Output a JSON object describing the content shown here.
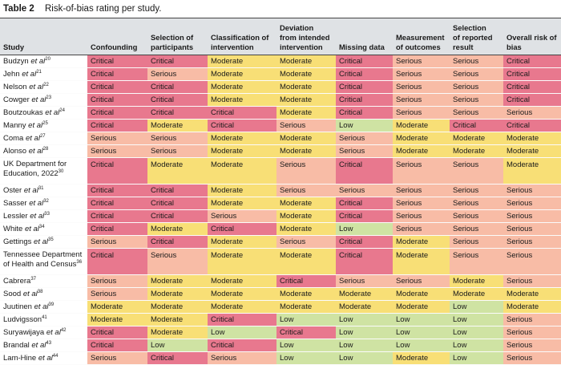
{
  "caption": {
    "number": "Table 2",
    "title": "Risk-of-bias rating per study."
  },
  "colors": {
    "Critical": "#e8788e",
    "Serious": "#f8bca6",
    "Moderate": "#f8df76",
    "Low": "#cfe3a3",
    "header_bg": "#dfe2e5"
  },
  "headers": [
    "Study",
    "Confounding",
    "Selection of\nparticipants",
    "Classification of\nintervention",
    "Deviation\nfrom intended\nintervention",
    "Missing data",
    "Measurement\nof outcomes",
    "Selection\nof reported\nresult",
    "Overall risk of\nbias"
  ],
  "rows": [
    {
      "study": "Budzyn",
      "etal": "et al",
      "ref": "20",
      "ratings": [
        "Critical",
        "Critical",
        "Moderate",
        "Moderate",
        "Critical",
        "Serious",
        "Serious",
        "Critical"
      ]
    },
    {
      "study": "Jehn",
      "etal": "et al",
      "ref": "21",
      "ratings": [
        "Critical",
        "Serious",
        "Moderate",
        "Moderate",
        "Critical",
        "Serious",
        "Serious",
        "Critical"
      ]
    },
    {
      "study": "Nelson",
      "etal": "et al",
      "ref": "22",
      "ratings": [
        "Critical",
        "Critical",
        "Moderate",
        "Moderate",
        "Critical",
        "Serious",
        "Serious",
        "Critical"
      ]
    },
    {
      "study": "Cowger",
      "etal": "et al",
      "ref": "23",
      "ratings": [
        "Critical",
        "Critical",
        "Moderate",
        "Moderate",
        "Critical",
        "Serious",
        "Serious",
        "Critical"
      ]
    },
    {
      "study": "Boutzoukas",
      "etal": "et al",
      "ref": "24",
      "ratings": [
        "Critical",
        "Critical",
        "Critical",
        "Moderate",
        "Critical",
        "Serious",
        "Serious",
        "Serious"
      ]
    },
    {
      "study": "Manny",
      "etal": "et al",
      "ref": "25",
      "ratings": [
        "Critical",
        "Moderate",
        "Critical",
        "Serious",
        "Low",
        "Moderate",
        "Critical",
        "Critical"
      ]
    },
    {
      "study": "Coma",
      "etal": "et al",
      "ref": "27",
      "ratings": [
        "Serious",
        "Serious",
        "Moderate",
        "Moderate",
        "Serious",
        "Moderate",
        "Moderate",
        "Moderate"
      ]
    },
    {
      "study": "Alonso",
      "etal": "et al",
      "ref": "28",
      "ratings": [
        "Serious",
        "Serious",
        "Moderate",
        "Moderate",
        "Serious",
        "Moderate",
        "Moderate",
        "Moderate"
      ]
    },
    {
      "study": "UK Department for Education, 2022",
      "etal": "",
      "ref": "30",
      "tall": true,
      "ratings": [
        "Critical",
        "Moderate",
        "Moderate",
        "Serious",
        "Critical",
        "Serious",
        "Serious",
        "Moderate"
      ]
    },
    {
      "study": "Oster",
      "etal": "et al",
      "ref": "31",
      "ratings": [
        "Critical",
        "Critical",
        "Moderate",
        "Serious",
        "Serious",
        "Serious",
        "Serious",
        "Serious"
      ]
    },
    {
      "study": "Sasser",
      "etal": "et al",
      "ref": "32",
      "ratings": [
        "Critical",
        "Critical",
        "Moderate",
        "Moderate",
        "Critical",
        "Serious",
        "Serious",
        "Serious"
      ]
    },
    {
      "study": "Lessler",
      "etal": "et al",
      "ref": "33",
      "ratings": [
        "Critical",
        "Critical",
        "Serious",
        "Moderate",
        "Critical",
        "Serious",
        "Serious",
        "Serious"
      ]
    },
    {
      "study": "White",
      "etal": "et al",
      "ref": "34",
      "ratings": [
        "Critical",
        "Moderate",
        "Critical",
        "Moderate",
        "Low",
        "Serious",
        "Serious",
        "Serious"
      ]
    },
    {
      "study": "Gettings",
      "etal": "et al",
      "ref": "35",
      "ratings": [
        "Serious",
        "Critical",
        "Moderate",
        "Serious",
        "Critical",
        "Moderate",
        "Serious",
        "Serious"
      ]
    },
    {
      "study": "Tennessee Department of Health and Census",
      "etal": "",
      "ref": "36",
      "tall": true,
      "ratings": [
        "Critical",
        "Serious",
        "Moderate",
        "Moderate",
        "Critical",
        "Moderate",
        "Serious",
        "Serious"
      ]
    },
    {
      "study": "Cabrera",
      "etal": "",
      "ref": "37",
      "ratings": [
        "Serious",
        "Moderate",
        "Moderate",
        "Critical",
        "Serious",
        "Serious",
        "Moderate",
        "Serious"
      ]
    },
    {
      "study": "Sood",
      "etal": "et al",
      "ref": "38",
      "ratings": [
        "Serious",
        "Moderate",
        "Moderate",
        "Moderate",
        "Moderate",
        "Moderate",
        "Moderate",
        "Moderate"
      ]
    },
    {
      "study": "Juutinen",
      "etal": "et al",
      "ref": "39",
      "ratings": [
        "Moderate",
        "Moderate",
        "Moderate",
        "Moderate",
        "Moderate",
        "Moderate",
        "Low",
        "Moderate"
      ]
    },
    {
      "study": "Ludvigsson",
      "etal": "",
      "ref": "41",
      "ratings": [
        "Moderate",
        "Moderate",
        "Critical",
        "Low",
        "Low",
        "Low",
        "Low",
        "Serious"
      ]
    },
    {
      "study": "Suryawijaya",
      "etal": "et al",
      "ref": "42",
      "ratings": [
        "Critical",
        "Moderate",
        "Low",
        "Critical",
        "Low",
        "Low",
        "Low",
        "Serious"
      ]
    },
    {
      "study": "Brandal",
      "etal": "et al",
      "ref": "43",
      "ratings": [
        "Critical",
        "Low",
        "Critical",
        "Low",
        "Low",
        "Low",
        "Low",
        "Serious"
      ]
    },
    {
      "study": "Lam-Hine",
      "etal": "et al",
      "ref": "44",
      "ratings": [
        "Serious",
        "Critical",
        "Serious",
        "Low",
        "Low",
        "Moderate",
        "Low",
        "Serious"
      ]
    }
  ]
}
